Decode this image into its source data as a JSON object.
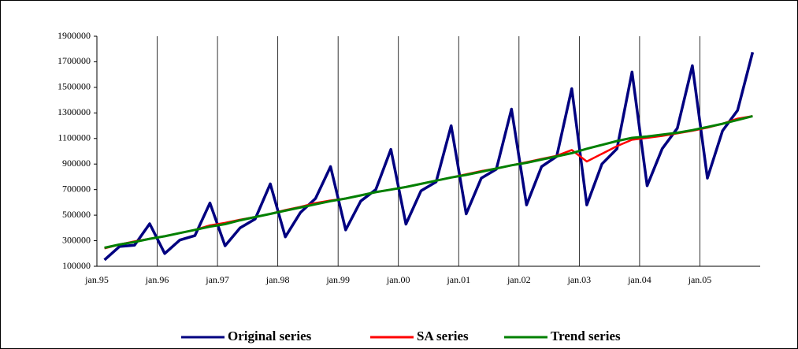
{
  "chart_data": {
    "type": "line",
    "categories": [
      "jan.95",
      null,
      null,
      null,
      "jan.96",
      null,
      null,
      null,
      "jan.97",
      null,
      null,
      null,
      "jan.98",
      null,
      null,
      null,
      "jan.99",
      null,
      null,
      null,
      "jan.00",
      null,
      null,
      null,
      "jan.01",
      null,
      null,
      null,
      "jan.02",
      null,
      null,
      null,
      "jan.03",
      null,
      null,
      null,
      "jan.04",
      null,
      null,
      null,
      "jan.05",
      null,
      null,
      null
    ],
    "series": [
      {
        "name": "Original series",
        "color": "#000080",
        "values": [
          150000,
          255000,
          265000,
          433000,
          200000,
          305000,
          340000,
          595000,
          260000,
          400000,
          470000,
          745000,
          330000,
          520000,
          630000,
          880000,
          385000,
          610000,
          700000,
          1015000,
          430000,
          690000,
          760000,
          1200000,
          510000,
          790000,
          860000,
          1330000,
          580000,
          880000,
          960000,
          1490000,
          580000,
          900000,
          1020000,
          1620000,
          730000,
          1020000,
          1180000,
          1670000,
          790000,
          1160000,
          1320000,
          1775000
        ]
      },
      {
        "name": "SA series",
        "color": "#ff0000",
        "values": [
          240000,
          270000,
          295000,
          315000,
          335000,
          360000,
          385000,
          420000,
          440000,
          465000,
          485000,
          510000,
          540000,
          565000,
          595000,
          615000,
          630000,
          655000,
          680000,
          700000,
          720000,
          745000,
          770000,
          795000,
          820000,
          845000,
          865000,
          890000,
          915000,
          940000,
          965000,
          1010000,
          920000,
          980000,
          1040000,
          1090000,
          1105000,
          1120000,
          1140000,
          1160000,
          1185000,
          1215000,
          1255000,
          1275000
        ]
      },
      {
        "name": "Trend series",
        "color": "#008000",
        "values": [
          245000,
          270000,
          290000,
          315000,
          335000,
          360000,
          385000,
          410000,
          430000,
          460000,
          485000,
          510000,
          535000,
          560000,
          585000,
          610000,
          630000,
          655000,
          680000,
          700000,
          720000,
          745000,
          770000,
          795000,
          815000,
          840000,
          865000,
          890000,
          910000,
          935000,
          960000,
          985000,
          1020000,
          1050000,
          1080000,
          1105000,
          1115000,
          1130000,
          1145000,
          1165000,
          1190000,
          1215000,
          1245000,
          1275000
        ]
      }
    ],
    "ylim": [
      100000,
      1900000
    ],
    "yticks": [
      100000,
      300000,
      500000,
      700000,
      900000,
      1100000,
      1300000,
      1500000,
      1700000,
      1900000
    ],
    "grid": "x",
    "legend": "bottom"
  }
}
